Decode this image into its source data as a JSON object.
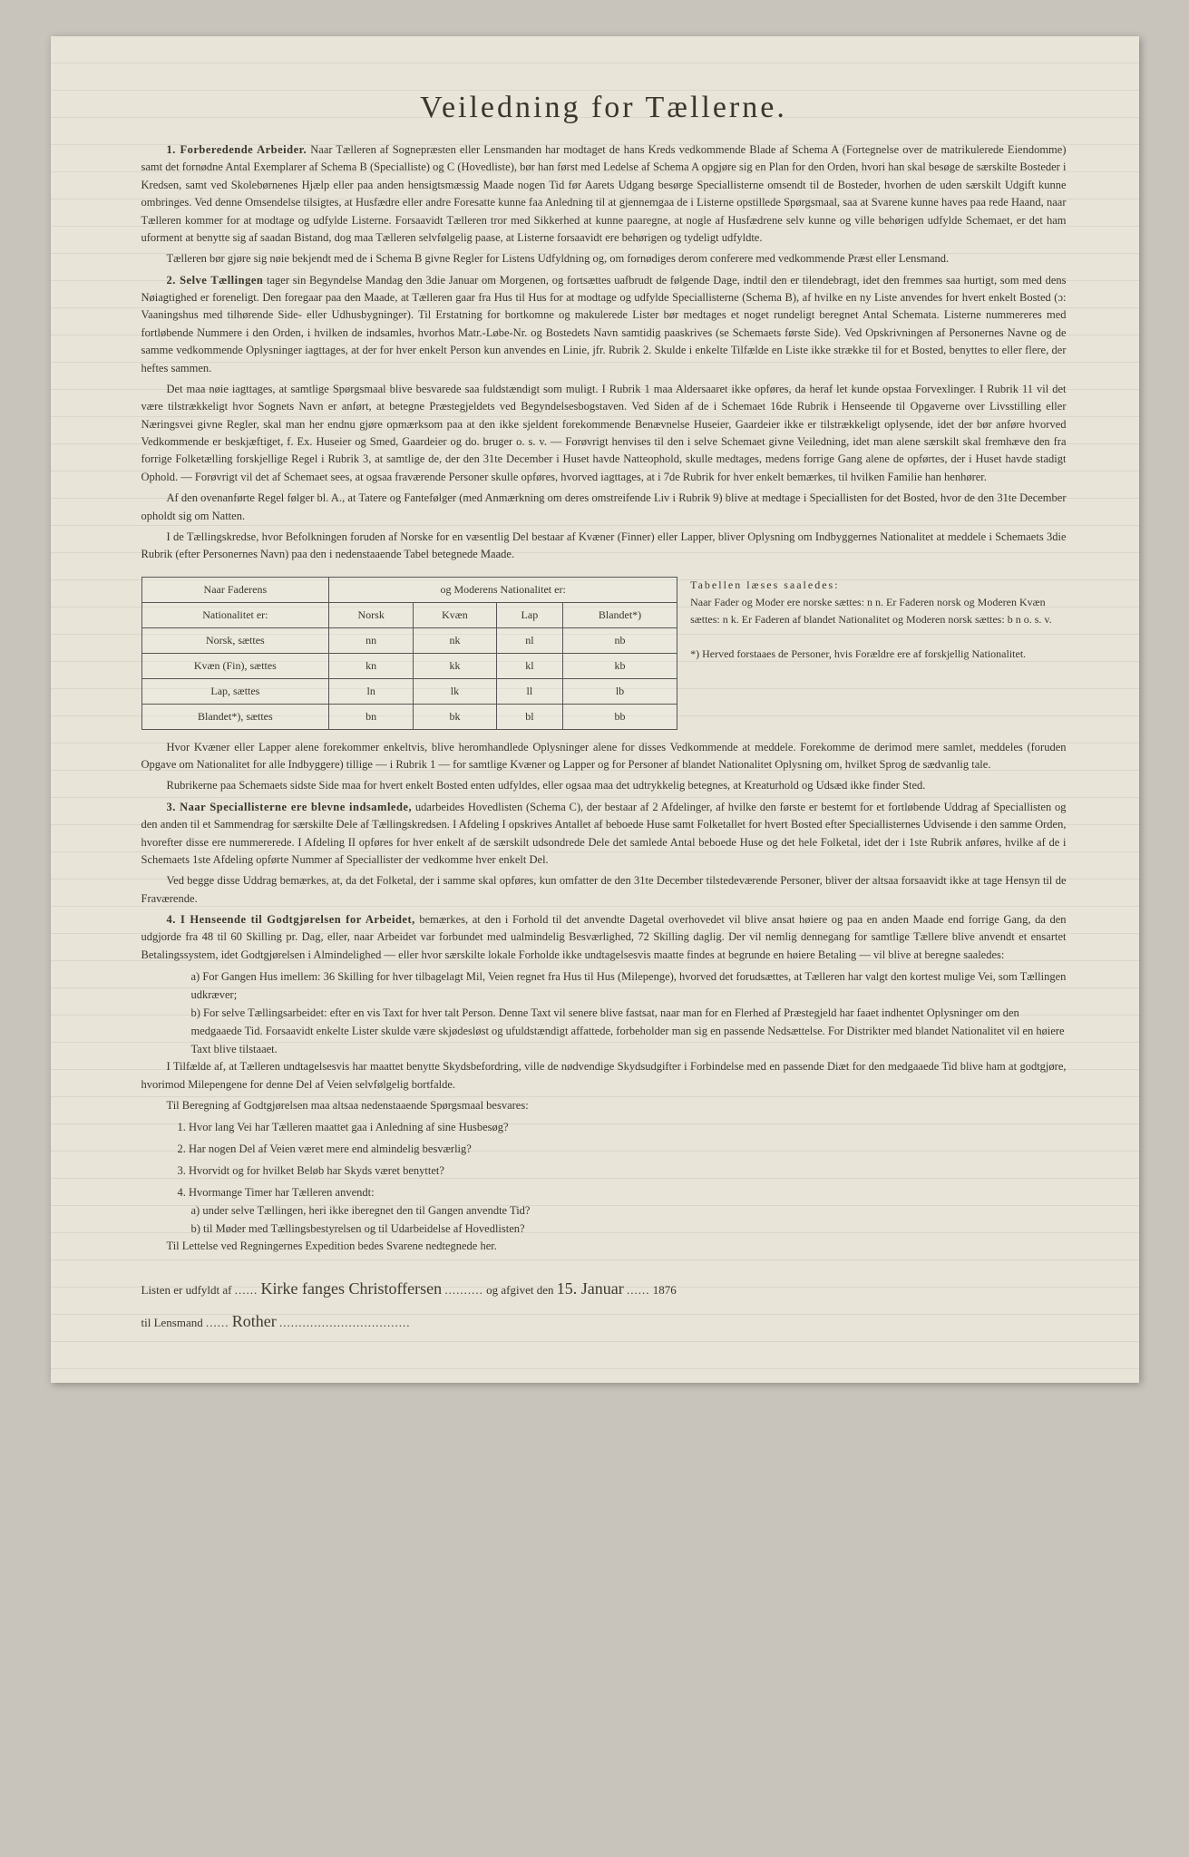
{
  "title": "Veiledning for Tællerne.",
  "p1_lead": "1. Forberedende Arbeider.",
  "p1": " Naar Tælleren af Sognepræsten eller Lensmanden har modtaget de hans Kreds vedkommende Blade af Schema A (Fortegnelse over de matrikulerede Eiendomme) samt det fornødne Antal Exemplarer af Schema B (Specialliste) og C (Hovedliste), bør han først med Ledelse af Schema A opgjøre sig en Plan for den Orden, hvori han skal besøge de særskilte Bosteder i Kredsen, samt ved Skolebørnenes Hjælp eller paa anden hensigtsmæssig Maade nogen Tid før Aarets Udgang besørge Speciallisterne omsendt til de Bosteder, hvorhen de uden særskilt Udgift kunne ombringes. Ved denne Omsendelse tilsigtes, at Husfædre eller andre Foresatte kunne faa Anledning til at gjennemgaa de i Listerne opstillede Spørgsmaal, saa at Svarene kunne haves paa rede Haand, naar Tælleren kommer for at modtage og udfylde Listerne. Forsaavidt Tælleren tror med Sikkerhed at kunne paaregne, at nogle af Husfædrene selv kunne og ville behørigen udfylde Schemaet, er det ham uforment at benytte sig af saadan Bistand, dog maa Tælleren selvfølgelig paase, at Listerne forsaavidt ere behørigen og tydeligt udfyldte.",
  "p2": "Tælleren bør gjøre sig nøie bekjendt med de i Schema B givne Regler for Listens Udfyldning og, om fornødiges derom conferere med vedkommende Præst eller Lensmand.",
  "p3_lead": "2. Selve Tællingen",
  "p3": " tager sin Begyndelse Mandag den 3die Januar om Morgenen, og fortsættes uafbrudt de følgende Dage, indtil den er tilendebragt, idet den fremmes saa hurtigt, som med dens Nøiagtighed er foreneligt. Den foregaar paa den Maade, at Tælleren gaar fra Hus til Hus for at modtage og udfylde Speciallisterne (Schema B), af hvilke en ny Liste anvendes for hvert enkelt Bosted (ɔ: Vaaningshus med tilhørende Side- eller Udhusbygninger). Til Erstatning for bortkomne og makulerede Lister bør medtages et noget rundeligt beregnet Antal Schemata. Listerne nummereres med fortløbende Nummere i den Orden, i hvilken de indsamles, hvorhos Matr.-Løbe-Nr. og Bostedets Navn samtidig paaskrives (se Schemaets første Side). Ved Opskrivningen af Personernes Navne og de samme vedkommende Oplysninger iagttages, at der for hver enkelt Person kun anvendes en Linie, jfr. Rubrik 2. Skulde i enkelte Tilfælde en Liste ikke strække til for et Bosted, benyttes to eller flere, der heftes sammen.",
  "p4": "Det maa nøie iagttages, at samtlige Spørgsmaal blive besvarede saa fuldstændigt som muligt. I Rubrik 1 maa Aldersaaret ikke opføres, da heraf let kunde opstaa Forvexlinger. I Rubrik 11 vil det være tilstrækkeligt hvor Sognets Navn er anført, at betegne Præstegjeldets ved Begyndelsesbogstaven. Ved Siden af de i Schemaet 16de Rubrik i Henseende til Opgaverne over Livsstilling eller Næringsvei givne Regler, skal man her endnu gjøre opmærksom paa at den ikke sjeldent forekommende Benævnelse Huseier, Gaardeier ikke er tilstrækkeligt oplysende, idet der bør anføre hvorved Vedkommende er beskjæftiget, f. Ex. Huseier og Smed, Gaardeier og do. bruger o. s. v. — Forøvrigt henvises til den i selve Schemaet givne Veiledning, idet man alene særskilt skal fremhæve den fra forrige Folketælling forskjellige Regel i Rubrik 3, at samtlige de, der den 31te December i Huset havde Natteophold, skulle medtages, medens forrige Gang alene de opførtes, der i Huset havde stadigt Ophold. — Forøvrigt vil det af Schemaet sees, at ogsaa fraværende Personer skulle opføres, hvorved iagttages, at i 7de Rubrik for hver enkelt bemærkes, til hvilken Familie han henhører.",
  "p5": "Af den ovenanførte Regel følger bl. A., at Tatere og Fantefølger (med Anmærkning om deres omstreifende Liv i Rubrik 9) blive at medtage i Speciallisten for det Bosted, hvor de den 31te December opholdt sig om Natten.",
  "p6": "I de Tællingskredse, hvor Befolkningen foruden af Norske for en væsentlig Del bestaar af Kvæner (Finner) eller Lapper, bliver Oplysning om Indbyggernes Nationalitet at meddele i Schemaets 3die Rubrik (efter Personernes Navn) paa den i nedenstaaende Tabel betegnede Maade.",
  "table": {
    "header_left": "Naar Faderens",
    "header_right": "og Moderens Nationalitet er:",
    "row_header": "Nationalitet er:",
    "cols": [
      "Norsk",
      "Kvæn",
      "Lap",
      "Blandet*)"
    ],
    "rows": [
      {
        "label": "Norsk, sættes",
        "cells": [
          "nn",
          "nk",
          "nl",
          "nb"
        ]
      },
      {
        "label": "Kvæn (Fin), sættes",
        "cells": [
          "kn",
          "kk",
          "kl",
          "kb"
        ]
      },
      {
        "label": "Lap, sættes",
        "cells": [
          "ln",
          "lk",
          "ll",
          "lb"
        ]
      },
      {
        "label": "Blandet*), sættes",
        "cells": [
          "bn",
          "bk",
          "bl",
          "bb"
        ]
      }
    ]
  },
  "side1": "Tabellen læses saaledes:",
  "side2": "Naar Fader og Moder ere norske sættes: n n. Er Faderen norsk og Moderen Kvæn sættes: n k. Er Faderen af blandet Nationalitet og Moderen norsk sættes: b n o. s. v.",
  "side3": "*) Herved forstaaes de Personer, hvis Forældre ere af forskjellig Nationalitet.",
  "p7": "Hvor Kvæner eller Lapper alene forekommer enkeltvis, blive heromhandlede Oplysninger alene for disses Vedkommende at meddele. Forekomme de derimod mere samlet, meddeles (foruden Opgave om Nationalitet for alle Indbyggere) tillige — i Rubrik 1 — for samtlige Kvæner og Lapper og for Personer af blandet Nationalitet Oplysning om, hvilket Sprog de sædvanlig tale.",
  "p8": "Rubrikerne paa Schemaets sidste Side maa for hvert enkelt Bosted enten udfyldes, eller ogsaa maa det udtrykkelig betegnes, at Kreaturhold og Udsæd ikke finder Sted.",
  "p9_lead": "3. Naar Speciallisterne ere blevne indsamlede,",
  "p9": " udarbeides Hovedlisten (Schema C), der bestaar af 2 Afdelinger, af hvilke den første er bestemt for et fortløbende Uddrag af Speciallisten og den anden til et Sammendrag for særskilte Dele af Tællingskredsen. I Afdeling I opskrives Antallet af beboede Huse samt Folketallet for hvert Bosted efter Speciallisternes Udvisende i den samme Orden, hvorefter disse ere nummererede. I Afdeling II opføres for hver enkelt af de særskilt udsondrede Dele det samlede Antal beboede Huse og det hele Folketal, idet der i 1ste Rubrik anføres, hvilke af de i Schemaets 1ste Afdeling opførte Nummer af Speciallister der vedkomme hver enkelt Del.",
  "p10": "Ved begge disse Uddrag bemærkes, at, da det Folketal, der i samme skal opføres, kun omfatter de den 31te December tilstedeværende Personer, bliver der altsaa forsaavidt ikke at tage Hensyn til de Fraværende.",
  "p11_lead": "4. I Henseende til Godtgjørelsen for Arbeidet,",
  "p11": " bemærkes, at den i Forhold til det anvendte Dagetal overhovedet vil blive ansat høiere og paa en anden Maade end forrige Gang, da den udgjorde fra 48 til 60 Skilling pr. Dag, eller, naar Arbeidet var forbundet med ualmindelig Besværlighed, 72 Skilling daglig. Der vil nemlig dennegang for samtlige Tællere blive anvendt et ensartet Betalingssystem, idet Godtgjørelsen i Almindelighed — eller hvor særskilte lokale Forholde ikke undtagelsesvis maatte findes at begrunde en høiere Betaling — vil blive at beregne saaledes:",
  "p11a": "a) For Gangen Hus imellem: 36 Skilling for hver tilbagelagt Mil, Veien regnet fra Hus til Hus (Milepenge), hvorved det forudsættes, at Tælleren har valgt den kortest mulige Vei, som Tællingen udkræver;",
  "p11b": "b) For selve Tællingsarbeidet: efter en vis Taxt for hver talt Person. Denne Taxt vil senere blive fastsat, naar man for en Flerhed af Præstegjeld har faaet indhentet Oplysninger om den medgaaede Tid. Forsaavidt enkelte Lister skulde være skjødesløst og ufuldstændigt affattede, forbeholder man sig en passende Nedsættelse. For Distrikter med blandet Nationalitet vil en høiere Taxt blive tilstaaet.",
  "p12": "I Tilfælde af, at Tælleren undtagelsesvis har maattet benytte Skydsbefordring, ville de nødvendige Skydsudgifter i Forbindelse med en passende Diæt for den medgaaede Tid blive ham at godtgjøre, hvorimod Milepengene for denne Del af Veien selvfølgelig bortfalde.",
  "p13": "Til Beregning af Godtgjørelsen maa altsaa nedenstaaende Spørgsmaal besvares:",
  "q1": "1. Hvor lang Vei har Tælleren maattet gaa i Anledning af sine Husbesøg?",
  "q2": "2. Har nogen Del af Veien været mere end almindelig besværlig?",
  "q3": "3. Hvorvidt og for hvilket Beløb har Skyds været benyttet?",
  "q4": "4. Hvormange Timer har Tælleren anvendt:",
  "q4a": "a) under selve Tællingen, heri ikke iberegnet den til Gangen anvendte Tid?",
  "q4b": "b) til Møder med Tællingsbestyrelsen og til Udarbeidelse af Hovedlisten?",
  "p14": "Til Lettelse ved Regningernes Expedition bedes Svarene nedtegnede her.",
  "sig_line1_a": "Listen er udfyldt af",
  "sig_name": "Kirke fanges Christoffersen",
  "sig_line1_b": "og afgivet den",
  "sig_date": "15. Januar",
  "sig_year": "1876",
  "sig_line2": "til Lensmand",
  "sig_lensmand": "Rother"
}
